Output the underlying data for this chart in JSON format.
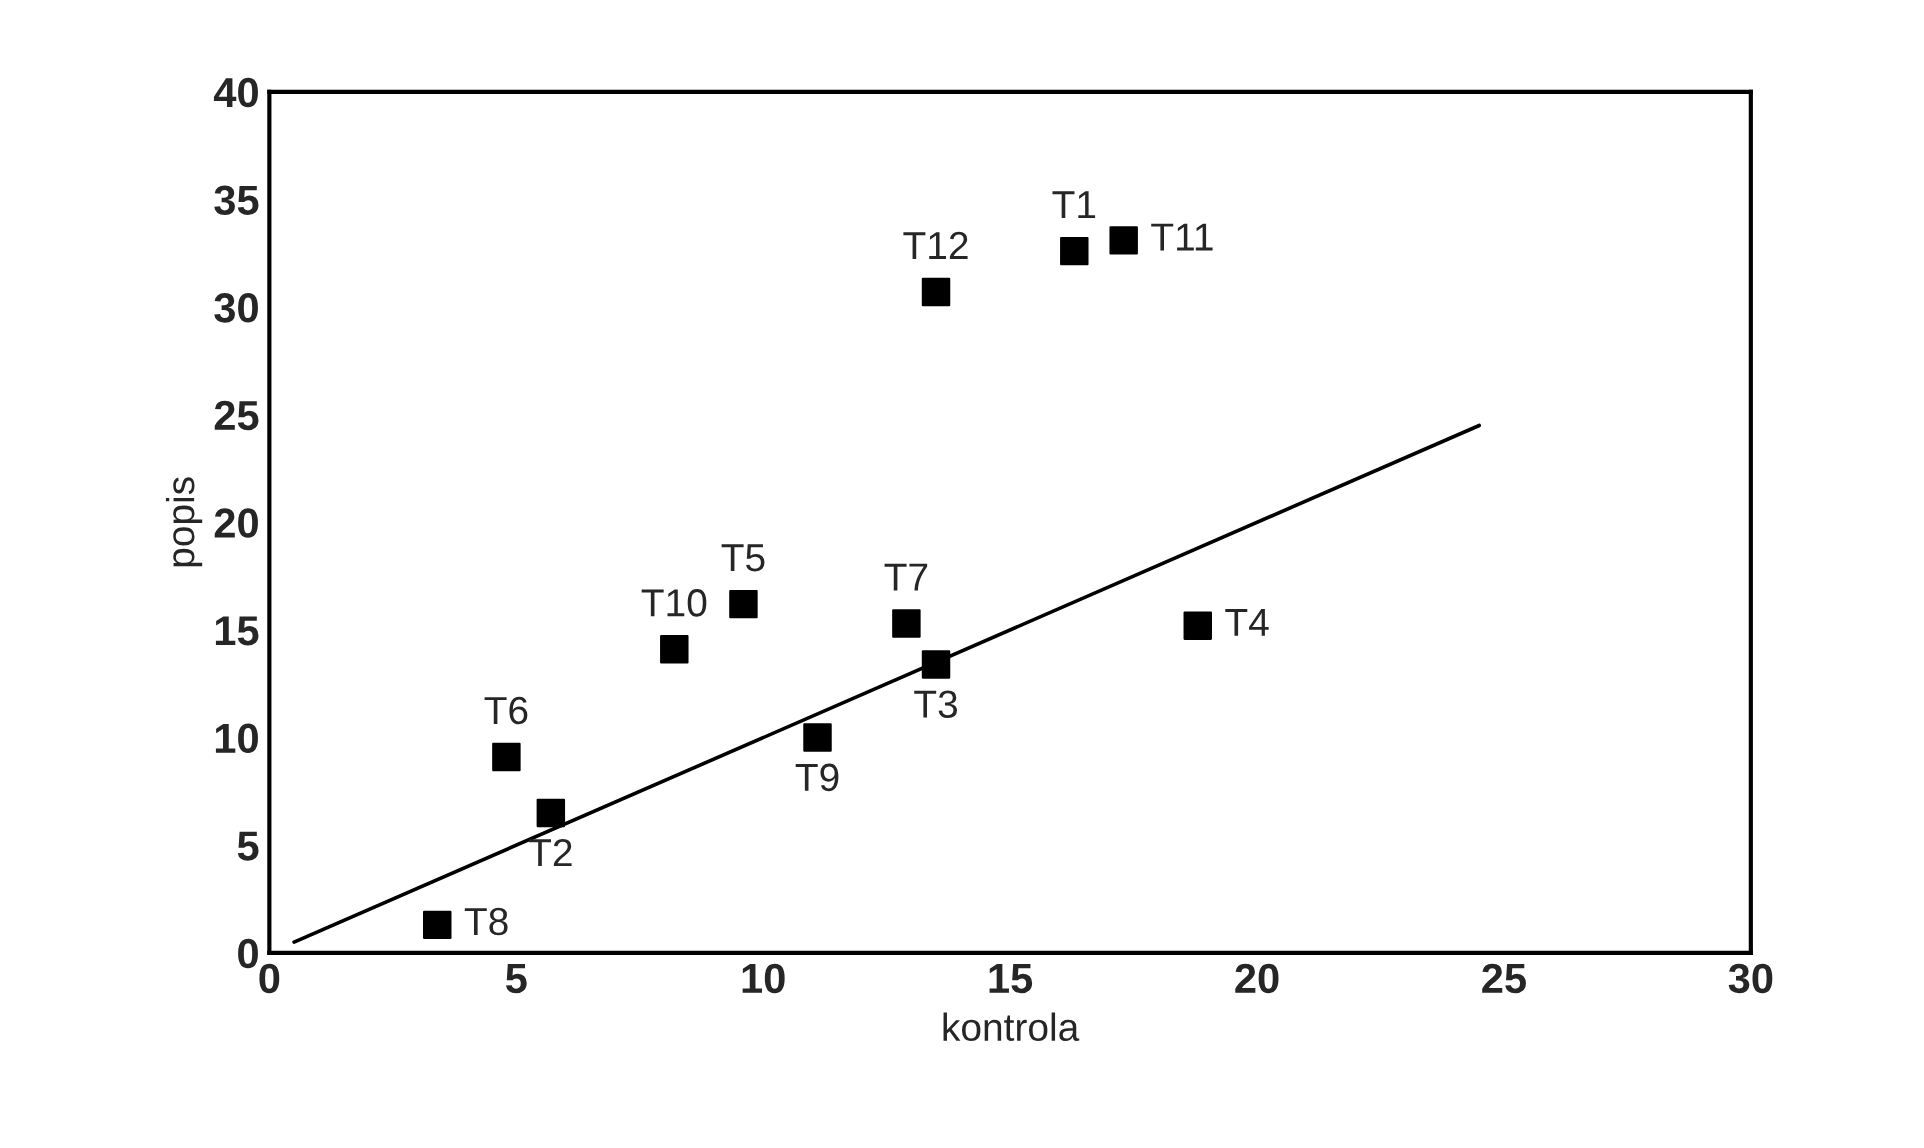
{
  "chart_data": {
    "type": "scatter",
    "xlabel": "kontrola",
    "ylabel": "popis",
    "xlim": [
      0,
      30
    ],
    "ylim": [
      0,
      40
    ],
    "xticks": [
      0,
      5,
      10,
      15,
      20,
      25,
      30
    ],
    "yticks": [
      0,
      5,
      10,
      15,
      20,
      25,
      30,
      35,
      40
    ],
    "grid": false,
    "marker": "square",
    "series": [
      {
        "color": "#000000",
        "x": [
          16.3,
          5.7,
          13.5,
          18.8,
          9.6,
          4.8,
          12.9,
          3.4,
          11.1,
          8.2,
          17.3,
          13.5
        ],
        "values": [
          32.6,
          6.5,
          13.4,
          15.2,
          16.2,
          9.1,
          15.3,
          1.3,
          10.0,
          14.1,
          33.1,
          30.7
        ],
        "value_labels": [
          "T1",
          "T2",
          "T3",
          "T4",
          "T5",
          "T6",
          "T7",
          "T8",
          "T9",
          "T10",
          "T11",
          "T12"
        ]
      },
      {
        "type": "line",
        "color": "#000000",
        "x": [
          0.5,
          24.5
        ],
        "values": [
          0.5,
          24.5
        ],
        "line_style": "solid",
        "marker": "none"
      }
    ]
  }
}
